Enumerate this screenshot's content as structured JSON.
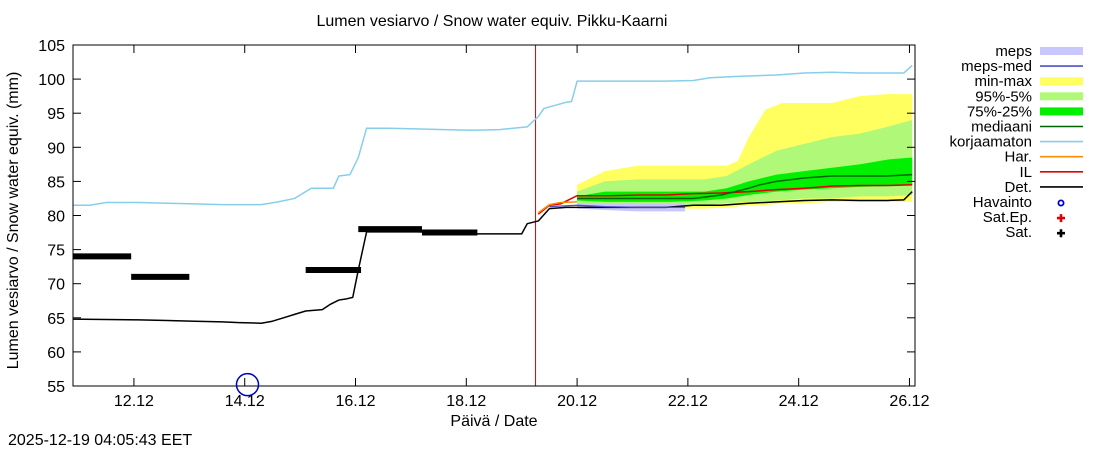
{
  "chart_data": {
    "type": "line",
    "title": "Lumen vesiarvo / Snow water equiv.  Pikku-Kaarni",
    "xlabel": "Päivä / Date",
    "ylabel": "Lumen vesiarvo / Snow water equiv. (mm)",
    "timestamp": "2025-12-19 04:05:43 EET",
    "xlim": [
      10.8,
      26.0
    ],
    "ylim": [
      55,
      105
    ],
    "x_unit": "day of December 2025",
    "forecast_start": 19.15,
    "yticks": [
      55,
      60,
      65,
      70,
      75,
      80,
      85,
      90,
      95,
      100,
      105
    ],
    "xticks": [
      {
        "value": 11.9,
        "label": "12.12"
      },
      {
        "value": 13.9,
        "label": "14.12"
      },
      {
        "value": 15.9,
        "label": "16.12"
      },
      {
        "value": 17.9,
        "label": "18.12"
      },
      {
        "value": 19.9,
        "label": "20.12"
      },
      {
        "value": 21.9,
        "label": "22.12"
      },
      {
        "value": 23.9,
        "label": "24.12"
      },
      {
        "value": 25.9,
        "label": "26.12"
      }
    ],
    "legend": [
      {
        "label": "meps",
        "color": "#c8c8ff",
        "kind": "box"
      },
      {
        "label": "meps-med",
        "color": "#5050c0",
        "kind": "line"
      },
      {
        "label": "min-max",
        "color": "#ffff60",
        "kind": "box"
      },
      {
        "label": "95%-5%",
        "color": "#b0f878",
        "kind": "box"
      },
      {
        "label": "75%-25%",
        "color": "#00f000",
        "kind": "box"
      },
      {
        "label": "mediaani",
        "color": "#006400",
        "kind": "line"
      },
      {
        "label": "korjaamaton",
        "color": "#87ceeb",
        "kind": "line"
      },
      {
        "label": "Har.",
        "color": "#ff8c00",
        "kind": "line"
      },
      {
        "label": "IL",
        "color": "#e00000",
        "kind": "line"
      },
      {
        "label": "Det.",
        "color": "#000000",
        "kind": "line"
      },
      {
        "label": "Havainto",
        "color": "#0000cc",
        "kind": "circle"
      },
      {
        "label": "Sat.Ep.",
        "color": "#e00000",
        "kind": "plus"
      },
      {
        "label": "Sat.",
        "color": "#000000",
        "kind": "plus"
      }
    ],
    "bands": [
      {
        "name": "min-max",
        "color": "#ffff60",
        "x": [
          19.9,
          20.4,
          21.0,
          21.6,
          22.2,
          22.6,
          22.8,
          23.0,
          23.3,
          23.6,
          24.0,
          24.5,
          25.0,
          25.5,
          25.95
        ],
        "upper": [
          84.5,
          86.5,
          87.3,
          87.3,
          87.3,
          87.3,
          88,
          91.5,
          95.5,
          96.5,
          96.5,
          96.5,
          97.5,
          97.8,
          97.8
        ],
        "lower": [
          81.5,
          81.2,
          81.0,
          81.0,
          81.0,
          81.2,
          81.3,
          81.5,
          81.5,
          81.8,
          81.8,
          82.0,
          82.0,
          82.0,
          82.0
        ]
      },
      {
        "name": "95%-5%",
        "color": "#b0f878",
        "x": [
          19.9,
          20.4,
          21.0,
          21.6,
          22.2,
          22.6,
          23.0,
          23.5,
          24.0,
          24.5,
          25.0,
          25.5,
          25.95
        ],
        "upper": [
          83.5,
          85.0,
          85.3,
          85.3,
          85.3,
          85.8,
          87.5,
          89.5,
          90.5,
          91.5,
          92.0,
          93.0,
          94.0
        ],
        "lower": [
          81.8,
          81.5,
          81.3,
          81.3,
          81.5,
          81.8,
          82.0,
          82.2,
          82.5,
          82.5,
          82.8,
          82.8,
          83.0
        ]
      },
      {
        "name": "75%-25%",
        "color": "#00f000",
        "x": [
          19.9,
          20.4,
          21.0,
          21.6,
          22.2,
          22.6,
          23.0,
          23.5,
          24.0,
          24.5,
          25.0,
          25.5,
          25.95
        ],
        "upper": [
          82.8,
          83.5,
          83.5,
          83.5,
          83.5,
          84.0,
          85.0,
          86.0,
          86.5,
          87.0,
          87.5,
          88.2,
          88.5
        ],
        "lower": [
          82.2,
          82.0,
          82.0,
          82.0,
          82.2,
          82.5,
          83.0,
          83.5,
          83.8,
          84.0,
          84.2,
          84.3,
          84.5
        ]
      },
      {
        "name": "meps",
        "color": "#c8c8ff",
        "x": [
          19.9,
          20.4,
          21.0,
          21.5,
          21.85
        ],
        "upper": [
          81.8,
          81.8,
          81.8,
          81.8,
          81.8
        ],
        "lower": [
          81.0,
          80.8,
          80.6,
          80.6,
          80.6
        ]
      }
    ],
    "series": [
      {
        "name": "korjaamaton",
        "color": "#87ceeb",
        "width": 1.5,
        "x": [
          10.8,
          11.1,
          11.4,
          12.0,
          12.5,
          13.0,
          13.5,
          14.2,
          14.5,
          14.8,
          15.0,
          15.1,
          15.5,
          15.6,
          15.8,
          15.95,
          16.1,
          16.5,
          17.0,
          17.5,
          18.0,
          18.5,
          19.0,
          19.2,
          19.3,
          19.7,
          19.8,
          19.9,
          20.5,
          21.0,
          21.5,
          22.0,
          22.3,
          22.8,
          23.5,
          24.0,
          24.5,
          25.0,
          25.5,
          25.8,
          25.95
        ],
        "y": [
          81.5,
          81.5,
          81.9,
          81.9,
          81.8,
          81.7,
          81.6,
          81.6,
          82.0,
          82.5,
          83.5,
          84.0,
          84.0,
          85.8,
          86.0,
          88.5,
          92.8,
          92.8,
          92.7,
          92.6,
          92.5,
          92.6,
          93.0,
          94.5,
          95.7,
          96.6,
          96.7,
          99.7,
          99.7,
          99.7,
          99.7,
          99.8,
          100.2,
          100.4,
          100.6,
          100.9,
          101.0,
          100.9,
          100.9,
          100.9,
          102.0
        ]
      },
      {
        "name": "Det.",
        "color": "#000000",
        "width": 1.5,
        "x": [
          10.8,
          12.0,
          12.5,
          13.0,
          13.5,
          13.8,
          14.2,
          14.4,
          14.6,
          14.8,
          15.0,
          15.3,
          15.45,
          15.6,
          15.75,
          15.85,
          15.95,
          16.1,
          16.5,
          17.0,
          17.5,
          18.0,
          18.5,
          18.9,
          19.0,
          19.2,
          19.4,
          19.7,
          19.9,
          20.4,
          21.0,
          21.5,
          22.0,
          22.5,
          23.0,
          23.5,
          24.0,
          24.5,
          25.0,
          25.5,
          25.8,
          25.95
        ],
        "y": [
          64.8,
          64.7,
          64.6,
          64.5,
          64.4,
          64.3,
          64.2,
          64.5,
          65.0,
          65.5,
          66.0,
          66.2,
          67.0,
          67.6,
          67.8,
          68.0,
          72.0,
          77.6,
          77.6,
          77.6,
          77.5,
          77.3,
          77.3,
          77.3,
          78.8,
          79.2,
          81.0,
          81.2,
          81.2,
          81.2,
          81.2,
          81.2,
          81.5,
          81.5,
          81.8,
          82.0,
          82.2,
          82.3,
          82.2,
          82.2,
          82.3,
          83.5
        ]
      },
      {
        "name": "IL",
        "color": "#e00000",
        "width": 1.5,
        "x": [
          19.2,
          19.4,
          19.6,
          19.9,
          20.5,
          21.0,
          21.5,
          22.0,
          22.5,
          23.0,
          23.5,
          24.0,
          24.5,
          25.0,
          25.5,
          25.95
        ],
        "y": [
          80.2,
          81.5,
          81.7,
          82.9,
          82.9,
          83.0,
          83.0,
          83.2,
          83.3,
          83.5,
          83.8,
          84.0,
          84.3,
          84.4,
          84.4,
          84.5
        ]
      },
      {
        "name": "Har.",
        "color": "#ff8c00",
        "width": 1.5,
        "x": [
          19.2,
          19.4,
          19.6,
          19.9
        ],
        "y": [
          80.4,
          81.6,
          81.9,
          82.0
        ]
      },
      {
        "name": "meps-med",
        "color": "#5050c0",
        "width": 1.2,
        "x": [
          19.4,
          19.9,
          20.4,
          21.0,
          21.5,
          21.85
        ],
        "y": [
          81.3,
          81.5,
          81.3,
          81.2,
          81.2,
          81.2
        ]
      },
      {
        "name": "mediaani",
        "color": "#006400",
        "width": 1.5,
        "x": [
          19.9,
          20.4,
          21.0,
          21.5,
          22.0,
          22.5,
          23.0,
          23.2,
          23.5,
          24.0,
          24.5,
          25.0,
          25.5,
          25.95
        ],
        "y": [
          82.5,
          82.5,
          82.5,
          82.5,
          82.5,
          83.0,
          84.0,
          84.5,
          85.0,
          85.5,
          85.8,
          85.8,
          85.8,
          86.0
        ]
      }
    ],
    "sat_segments": [
      {
        "x0": 10.8,
        "x1": 11.85,
        "y": 74.0
      },
      {
        "x0": 11.85,
        "x1": 12.9,
        "y": 71.0
      },
      {
        "x0": 15.0,
        "x1": 16.0,
        "y": 72.0
      },
      {
        "x0": 15.95,
        "x1": 17.1,
        "y": 78.0
      },
      {
        "x0": 17.1,
        "x1": 18.1,
        "y": 77.5
      }
    ],
    "observations": [
      {
        "x": 13.95,
        "y": 55.2
      }
    ]
  }
}
